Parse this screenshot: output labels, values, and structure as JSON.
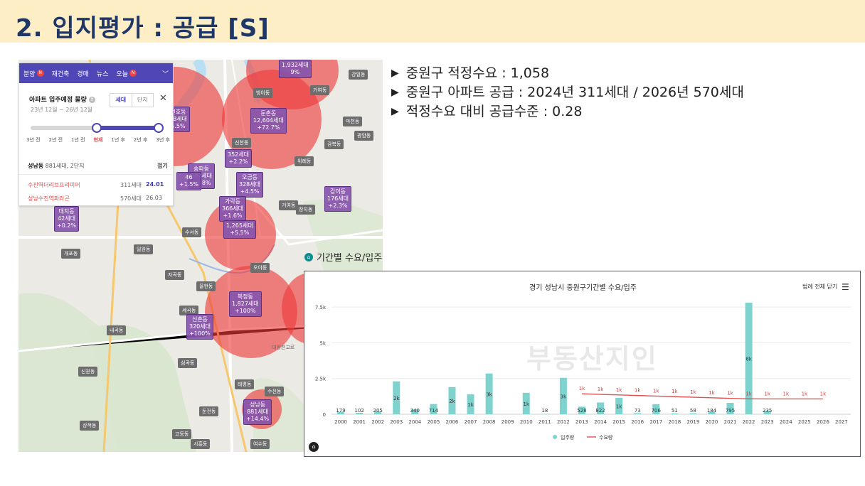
{
  "slide": {
    "title": "2. 입지평가 : 공급 [S]"
  },
  "bullets": [
    "중원구 적정수요 : 1,058",
    "중원구 아파트 공급 : 2024년 311세대 / 2026년 570세대",
    "적정수요 대비 공급수준 : 0.28"
  ],
  "map": {
    "nav": {
      "items": [
        {
          "label": "분양",
          "badge": "N"
        },
        {
          "label": "재건축",
          "badge": ""
        },
        {
          "label": "경매",
          "badge": ""
        },
        {
          "label": "뉴스",
          "badge": ""
        },
        {
          "label": "오늘",
          "badge": "N"
        }
      ]
    },
    "panel": {
      "title": "아파트 입주예정 물량",
      "help": "?",
      "period": "23년 12월 ~ 26년 12월",
      "toggle": [
        "세대",
        "단지"
      ],
      "close": "✕",
      "slider_labels": [
        "3년 전",
        "2년 전",
        "1년 전",
        "현재",
        "1년 후",
        "2년 후",
        "3년 후"
      ],
      "area_name": "성남동",
      "area_sub": "881세대, 2단지",
      "fold": "접기",
      "complexes": [
        {
          "name": "수진역더리브프리미어",
          "units": "311세대",
          "date": "24.01"
        },
        {
          "name": "성남수진역파라곤",
          "units": "570세대",
          "date": "26.03"
        }
      ]
    },
    "markers": [
      {
        "name": "둔촌동",
        "units": "12,604세대",
        "pct": "+72.7%"
      },
      {
        "name": "천호동",
        "units": "78세대",
        "pct": "5.5%"
      },
      {
        "name": "",
        "units": "1,932세대",
        "pct": "9%"
      },
      {
        "name": "",
        "units": "352세대",
        "pct": "+2.2%"
      },
      {
        "name": "송파동",
        "units": "397세대",
        "pct": "+6.8%"
      },
      {
        "name": "오금동",
        "units": "328세대",
        "pct": "+4.5%"
      },
      {
        "name": "감이동",
        "units": "176세대",
        "pct": "+2.3%"
      },
      {
        "name": "가락동",
        "units": "366세대",
        "pct": "+1.6%"
      },
      {
        "name": "",
        "units": "1,265세대",
        "pct": "+5.5%"
      },
      {
        "name": "대치동",
        "units": "42세대",
        "pct": "+0.2%"
      },
      {
        "name": "",
        "units": "46",
        "pct": "+1.5%"
      },
      {
        "name": "복정동",
        "units": "1,827세대",
        "pct": "+100%"
      },
      {
        "name": "신촌동",
        "units": "320세대",
        "pct": "+100%"
      },
      {
        "name": "성남동",
        "units": "881세대",
        "pct": "+14.4%"
      }
    ],
    "labels": [
      "거여동",
      "장지동",
      "세곡동",
      "오야동",
      "심곡동",
      "둔전동",
      "고등동",
      "시흥동",
      "여수동",
      "태평동",
      "수진동",
      "수서동",
      "일원동",
      "개포동",
      "내곡동",
      "신원동",
      "상적동",
      "자곡동",
      "율현동",
      "강일동",
      "감북동",
      "광암동",
      "위례동",
      "방이동",
      "신천동",
      "거여동",
      "마천동",
      "대왕판교로"
    ]
  },
  "chart_section": {
    "title": "기간별 수요/입주",
    "icon": "⌂"
  },
  "chart_data": {
    "type": "bar",
    "title": "경기 성남시 중원구기간별 수요/입주",
    "legend_button": "범례 전체 닫기",
    "watermark": "부동산지인",
    "categories": [
      "2000",
      "2001",
      "2002",
      "2003",
      "2004",
      "2005",
      "2006",
      "2007",
      "2008",
      "2009",
      "2010",
      "2011",
      "2012",
      "2013",
      "2014",
      "2015",
      "2016",
      "2017",
      "2018",
      "2019",
      "2020",
      "2021",
      "2022",
      "2023",
      "2024",
      "2025",
      "2026",
      "2027"
    ],
    "series": [
      {
        "name": "입주량",
        "color": "#7fd3cf",
        "values": [
          179,
          102,
          205,
          2300,
          340,
          714,
          1900,
          1400,
          2850,
          0,
          1500,
          18,
          2550,
          528,
          822,
          1150,
          73,
          706,
          51,
          58,
          184,
          795,
          7800,
          235,
          null,
          null,
          null,
          null
        ],
        "labels": [
          "179",
          "102",
          "205",
          "2k",
          "340",
          "714",
          "2k",
          "1k",
          "3k",
          "",
          "1k",
          "18",
          "3k",
          "528",
          "822",
          "1k",
          "73",
          "706",
          "51",
          "58",
          "184",
          "795",
          "8k",
          "235",
          "",
          "",
          "",
          ""
        ]
      },
      {
        "name": "수요량",
        "color": "#e05252",
        "values": [
          null,
          null,
          null,
          null,
          null,
          null,
          null,
          null,
          null,
          null,
          null,
          null,
          null,
          1430,
          1390,
          1350,
          1310,
          1270,
          1230,
          1190,
          1150,
          1110,
          1080,
          1070,
          1070,
          1070,
          1070,
          null
        ],
        "labels": [
          "",
          "",
          "",
          "",
          "",
          "",
          "",
          "",
          "",
          "",
          "",
          "",
          "",
          "1k",
          "1k",
          "1k",
          "1k",
          "1k",
          "1k",
          "1k",
          "1k",
          "1k",
          "1k",
          "1k",
          "1k",
          "1k",
          "1k",
          ""
        ]
      }
    ],
    "yticks": [
      0,
      2500,
      5000,
      7500
    ],
    "ytick_labels": [
      "0",
      "2.5k",
      "5k",
      "7.5k"
    ],
    "ylim": [
      0,
      8000
    ],
    "grid": true,
    "legend": "bottom"
  }
}
